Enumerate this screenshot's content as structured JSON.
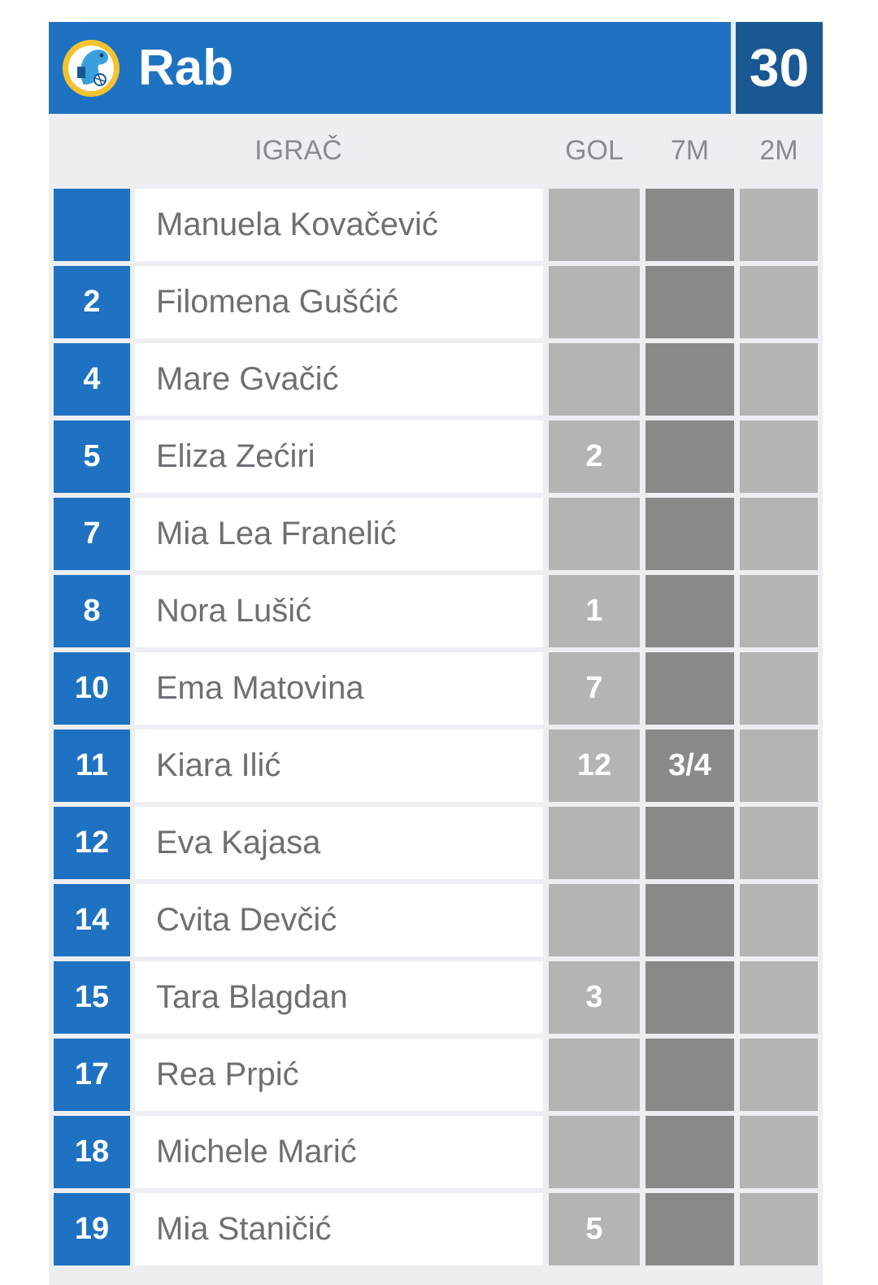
{
  "team": {
    "name": "Rab",
    "score": "30",
    "logo": "club-crest-dolphin-ball"
  },
  "colors": {
    "team_blue": "#1f72c1",
    "score_blue": "#1a5894",
    "goal_cell": "#b4b4b4",
    "seven_m_cell": "#898989",
    "header_bg": "#edeef2"
  },
  "headers": {
    "player": "IGRAČ",
    "gol": "GOL",
    "seven_m": "7M",
    "two_m": "2M"
  },
  "players": [
    {
      "num": "",
      "name": "Manuela Kovačević",
      "gol": "",
      "seven_m": "",
      "two_m": ""
    },
    {
      "num": "2",
      "name": "Filomena Gušćić",
      "gol": "",
      "seven_m": "",
      "two_m": ""
    },
    {
      "num": "4",
      "name": "Mare Gvačić",
      "gol": "",
      "seven_m": "",
      "two_m": ""
    },
    {
      "num": "5",
      "name": "Eliza Zećiri",
      "gol": "2",
      "seven_m": "",
      "two_m": ""
    },
    {
      "num": "7",
      "name": "Mia Lea Franelić",
      "gol": "",
      "seven_m": "",
      "two_m": ""
    },
    {
      "num": "8",
      "name": "Nora Lušić",
      "gol": "1",
      "seven_m": "",
      "two_m": ""
    },
    {
      "num": "10",
      "name": "Ema Matovina",
      "gol": "7",
      "seven_m": "",
      "two_m": ""
    },
    {
      "num": "11",
      "name": "Kiara Ilić",
      "gol": "12",
      "seven_m": "3/4",
      "two_m": ""
    },
    {
      "num": "12",
      "name": "Eva Kajasa",
      "gol": "",
      "seven_m": "",
      "two_m": ""
    },
    {
      "num": "14",
      "name": "Cvita Devčić",
      "gol": "",
      "seven_m": "",
      "two_m": ""
    },
    {
      "num": "15",
      "name": "Tara Blagdan",
      "gol": "3",
      "seven_m": "",
      "two_m": ""
    },
    {
      "num": "17",
      "name": "Rea Prpić",
      "gol": "",
      "seven_m": "",
      "two_m": ""
    },
    {
      "num": "18",
      "name": "Michele Marić",
      "gol": "",
      "seven_m": "",
      "two_m": ""
    },
    {
      "num": "19",
      "name": "Mia Staničić",
      "gol": "5",
      "seven_m": "",
      "two_m": ""
    }
  ]
}
